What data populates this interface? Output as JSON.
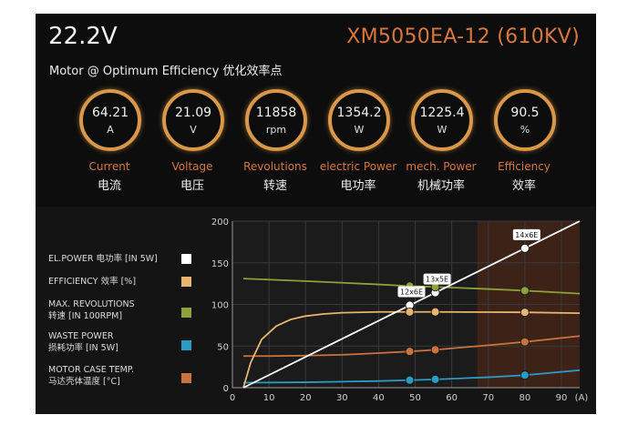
{
  "header": {
    "voltage": "22.2V",
    "model": "XM5050EA-12 (610KV)",
    "subtitle": "Motor @ Optimum Efficiency  优化效率点"
  },
  "gauges": [
    {
      "value": "64.21",
      "unit": "A",
      "label": "Current",
      "label_cn": "电流"
    },
    {
      "value": "21.09",
      "unit": "V",
      "label": "Voltage",
      "label_cn": "电压"
    },
    {
      "value": "11858",
      "unit": "rpm",
      "label": "Revolutions",
      "label_cn": "转速"
    },
    {
      "value": "1354.2",
      "unit": "W",
      "label": "electric Power",
      "label_cn": "电功率"
    },
    {
      "value": "1225.4",
      "unit": "W",
      "label": "mech. Power",
      "label_cn": "机械功率"
    },
    {
      "value": "90.5",
      "unit": "%",
      "label": "Efficiency",
      "label_cn": "效率"
    }
  ],
  "legend": [
    {
      "line1": "EL.POWER 电功率 [IN 5W]",
      "line2": "",
      "color": "#ffffff"
    },
    {
      "line1": "EFFICIENCY 效率 [%]",
      "line2": "",
      "color": "#e8b46e"
    },
    {
      "line1": "MAX. REVOLUTIONS",
      "line2": "转速 [IN 100RPM]",
      "color": "#8da33a"
    },
    {
      "line1": "WASTE POWER",
      "line2": "损耗功率 [IN 5W]",
      "color": "#2b9bc4"
    },
    {
      "line1": "MOTOR CASE TEMP.",
      "line2": "马达壳体温度 [°C]",
      "color": "#c9743f"
    }
  ],
  "chart_data": {
    "type": "line",
    "x_unit": "(A)",
    "xlim": [
      0,
      95
    ],
    "ylim": [
      0,
      200
    ],
    "x_ticks": [
      0,
      10,
      20,
      30,
      40,
      50,
      60,
      70,
      80,
      90
    ],
    "y_ticks": [
      0,
      50,
      100,
      150,
      200
    ],
    "highlight_x_range": [
      67,
      95
    ],
    "series": [
      {
        "name": "EL.POWER",
        "color": "#ffffff",
        "x": [
          3,
          95
        ],
        "y": [
          0,
          200
        ]
      },
      {
        "name": "EFFICIENCY",
        "color": "#e8b46e",
        "x": [
          3,
          5,
          8,
          12,
          16,
          20,
          25,
          30,
          40,
          48.5,
          55.5,
          70,
          80,
          95
        ],
        "y": [
          0,
          30,
          58,
          74,
          82,
          86,
          88.5,
          90,
          91,
          91,
          91,
          90.7,
          90.5,
          89.5
        ]
      },
      {
        "name": "MAX. REVOLUTIONS",
        "color": "#8da33a",
        "x": [
          3,
          20,
          40,
          48.5,
          55.5,
          70,
          80,
          95
        ],
        "y": [
          131,
          128,
          124,
          122,
          121,
          118.5,
          116.5,
          113
        ]
      },
      {
        "name": "WASTE POWER",
        "color": "#2b9bc4",
        "x": [
          3,
          20,
          40,
          48.5,
          55.5,
          70,
          80,
          95
        ],
        "y": [
          6,
          6.5,
          8,
          9,
          10,
          12.5,
          15,
          21
        ]
      },
      {
        "name": "MOTOR CASE TEMP.",
        "color": "#c9743f",
        "x": [
          3,
          10,
          20,
          30,
          40,
          48.5,
          55.5,
          70,
          80,
          95
        ],
        "y": [
          38,
          38,
          38.5,
          39.5,
          41.5,
          43.5,
          45.5,
          51,
          55,
          62
        ]
      }
    ],
    "markers": [
      {
        "x": 48.5,
        "label": "12x6E"
      },
      {
        "x": 55.5,
        "label": "13x5E"
      },
      {
        "x": 80,
        "label": "14x6E"
      }
    ]
  }
}
